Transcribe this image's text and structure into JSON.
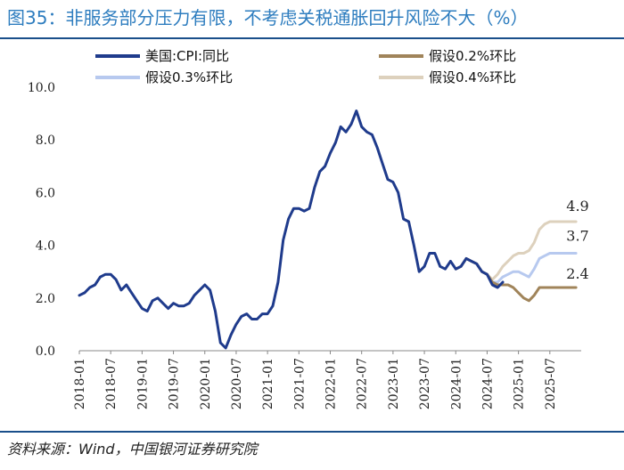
{
  "title": "图35：非服务部分压力有限，不考虑关税通胀回升风险不大（%）",
  "source": "资料来源：Wind，中国银河证券研究院",
  "chart_data": {
    "type": "line",
    "title": "图35：非服务部分压力有限，不考虑关税通胀回升风险不大（%）",
    "ylabel": "%",
    "xlabel": "",
    "ylim": [
      0,
      10
    ],
    "yticks": [
      "0.0",
      "2.0",
      "4.0",
      "6.0",
      "8.0",
      "10.0"
    ],
    "yticks_values": [
      0,
      2,
      4,
      6,
      8,
      10
    ],
    "x_start": "2018-01",
    "x_end": "2026-01",
    "xticks": [
      "2018-01",
      "2018-07",
      "2019-01",
      "2019-07",
      "2020-01",
      "2020-07",
      "2021-01",
      "2021-07",
      "2022-01",
      "2022-07",
      "2023-01",
      "2023-07",
      "2024-01",
      "2024-07",
      "2025-01",
      "2025-07"
    ],
    "xticks_index": [
      0,
      6,
      12,
      18,
      24,
      30,
      36,
      42,
      48,
      54,
      60,
      66,
      72,
      78,
      84,
      90
    ],
    "series": [
      {
        "name": "美国:CPI:同比",
        "color": "#1f3b8c",
        "width": 3,
        "start_index": 0,
        "values": [
          2.1,
          2.2,
          2.4,
          2.5,
          2.8,
          2.9,
          2.9,
          2.7,
          2.3,
          2.5,
          2.2,
          1.9,
          1.6,
          1.5,
          1.9,
          2.0,
          1.8,
          1.6,
          1.8,
          1.7,
          1.7,
          1.8,
          2.1,
          2.3,
          2.5,
          2.3,
          1.5,
          0.3,
          0.1,
          0.6,
          1.0,
          1.3,
          1.4,
          1.2,
          1.2,
          1.4,
          1.4,
          1.7,
          2.6,
          4.2,
          5.0,
          5.4,
          5.4,
          5.3,
          5.4,
          6.2,
          6.8,
          7.0,
          7.5,
          7.9,
          8.5,
          8.3,
          8.6,
          9.1,
          8.5,
          8.3,
          8.2,
          7.7,
          7.1,
          6.5,
          6.4,
          6.0,
          5.0,
          4.9,
          4.0,
          3.0,
          3.2,
          3.7,
          3.7,
          3.2,
          3.1,
          3.4,
          3.1,
          3.2,
          3.5,
          3.4,
          3.3,
          3.0,
          2.9,
          2.5,
          2.4,
          2.6
        ]
      },
      {
        "name": "假设0.2%环比",
        "color": "#a0845a",
        "width": 3,
        "start_index": 72,
        "values": [
          3.1,
          3.2,
          3.5,
          3.4,
          3.3,
          3.0,
          2.9,
          2.6,
          2.5,
          2.5,
          2.5,
          2.4,
          2.2,
          2.0,
          1.9,
          2.1,
          2.4,
          2.4,
          2.4,
          2.4,
          2.4,
          2.4,
          2.4,
          2.4
        ]
      },
      {
        "name": "假设0.3%环比",
        "color": "#b7c9ef",
        "width": 3,
        "start_index": 72,
        "values": [
          3.1,
          3.2,
          3.5,
          3.4,
          3.3,
          3.0,
          2.9,
          2.6,
          2.6,
          2.8,
          2.9,
          3.0,
          3.0,
          2.9,
          2.8,
          3.1,
          3.5,
          3.6,
          3.7,
          3.7,
          3.7,
          3.7,
          3.7,
          3.7
        ]
      },
      {
        "name": "假设0.4%环比",
        "color": "#ddd1bd",
        "width": 3,
        "start_index": 72,
        "values": [
          3.1,
          3.2,
          3.5,
          3.4,
          3.3,
          3.0,
          2.9,
          2.7,
          2.9,
          3.2,
          3.4,
          3.6,
          3.7,
          3.7,
          3.8,
          4.1,
          4.6,
          4.8,
          4.9,
          4.9,
          4.9,
          4.9,
          4.9,
          4.9
        ]
      }
    ],
    "annotations": [
      "4.9",
      "3.7",
      "2.4"
    ],
    "annotation_values": [
      4.9,
      3.7,
      2.4
    ],
    "legend_position": "top"
  }
}
